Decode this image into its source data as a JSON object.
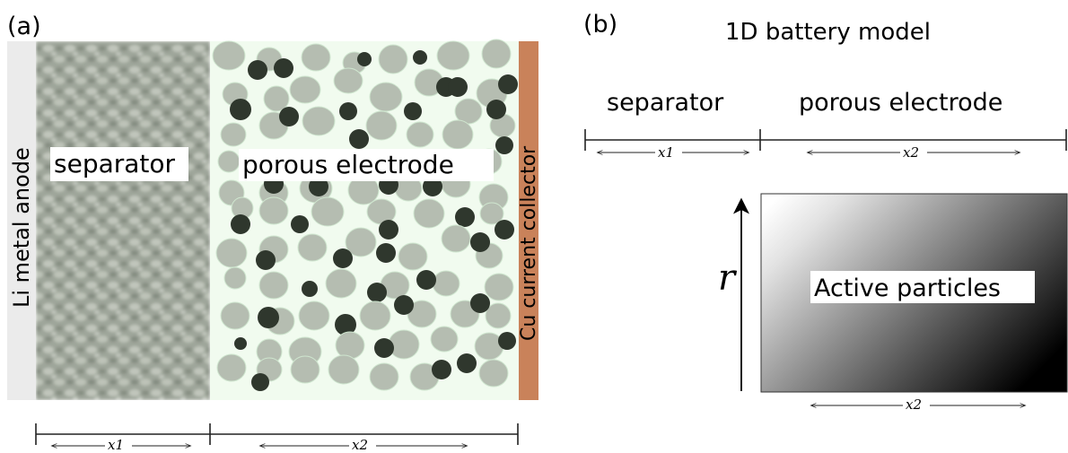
{
  "panel_a": {
    "label": "(a)",
    "anode_label": "Li metal anode",
    "separator_label": "separator",
    "electrode_label": "porous electrode",
    "collector_label": "Cu current collector",
    "dim_x1": "x1",
    "dim_x2": "x2"
  },
  "panel_b": {
    "label": "(b)",
    "title": "1D battery model",
    "separator_label": "separator",
    "electrode_label": "porous electrode",
    "dim_x1": "x1",
    "dim_x2": "x2",
    "axis_r": "r",
    "box_label": "Active particles",
    "dim_x2_bottom": "x2"
  },
  "colors": {
    "anode": "#ebebeb",
    "separator_bg": "#9ea59a",
    "electrode_bg": "#f1fbef",
    "particle_light": "#b5bdb1",
    "particle_dark": "#2f372d",
    "collector": "#c9825a"
  }
}
